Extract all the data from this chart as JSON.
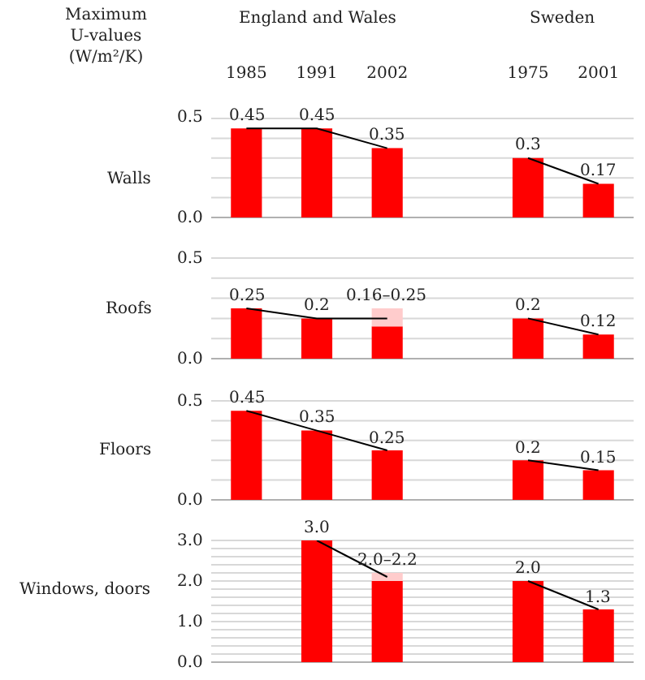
{
  "chart_data": [
    {
      "type": "bar",
      "stacked": true,
      "title": "Maximum U-values (W/m²/K)",
      "annotations": [
        "England and Wales",
        "Sweden"
      ],
      "ylabel": "Walls",
      "categories": [
        "1985",
        "1991",
        "2002",
        null,
        "1975",
        "2001"
      ],
      "ylim": [
        0,
        0.5
      ],
      "yticks": [
        {
          "value": 0,
          "label": "0.0"
        },
        {
          "value": 0.1,
          "label": null
        },
        {
          "value": 0.2,
          "label": null
        },
        {
          "value": 0.3,
          "label": null
        },
        {
          "value": 0.4,
          "label": null
        },
        {
          "value": 0.5,
          "label": "0.5"
        }
      ],
      "grid": "y",
      "series": [
        {
          "color": "#ff0000",
          "values": [
            0.45,
            0.45,
            0.35,
            null,
            0.3,
            0.17
          ],
          "value_labels": [
            "0.45",
            "0.45",
            "0.35",
            null,
            "0.3",
            "0.17"
          ]
        },
        {
          "type": "line",
          "color": "#000000",
          "values": [
            0.45,
            0.45,
            0.35,
            null,
            null,
            null
          ]
        },
        {
          "type": "line",
          "color": "#000000",
          "values": [
            null,
            null,
            null,
            null,
            0.3,
            0.17
          ]
        }
      ]
    },
    {
      "type": "bar",
      "stacked": true,
      "ylabel": "Roofs",
      "tick_labels": "y",
      "categories": [
        "1985",
        "1991",
        "2002",
        null,
        "1975",
        "2001"
      ],
      "ylim": [
        0,
        0.5
      ],
      "yticks": [
        {
          "value": 0,
          "label": "0.0"
        },
        {
          "value": 0.1,
          "label": null
        },
        {
          "value": 0.2,
          "label": null
        },
        {
          "value": 0.3,
          "label": null
        },
        {
          "value": 0.4,
          "label": null
        },
        {
          "value": 0.5,
          "label": "0.5"
        }
      ],
      "grid": "y",
      "series": [
        {
          "color": "#ff0000",
          "values": [
            0.25,
            0.2,
            0.16,
            null,
            0.2,
            0.12
          ],
          "value_labels": [
            "0.25",
            "0.2",
            null,
            null,
            "0.2",
            "0.12"
          ]
        },
        {
          "color": "#ffcccc",
          "values": [
            null,
            null,
            0.09,
            null,
            null,
            null
          ],
          "value_labels": [
            null,
            null,
            "0.16–0.25",
            null,
            null,
            null
          ]
        },
        {
          "type": "line",
          "color": "#000000",
          "values": [
            0.25,
            0.2,
            0.2,
            null,
            null,
            null
          ]
        },
        {
          "type": "line",
          "color": "#000000",
          "values": [
            null,
            null,
            null,
            null,
            0.2,
            0.12
          ]
        }
      ]
    },
    {
      "type": "bar",
      "stacked": true,
      "ylabel": "Floors",
      "tick_labels": "y",
      "categories": [
        "1985",
        "1991",
        "2002",
        null,
        "1975",
        "2001"
      ],
      "ylim": [
        0,
        0.5
      ],
      "yticks": [
        {
          "value": 0,
          "label": "0.0"
        },
        {
          "value": 0.1,
          "label": null
        },
        {
          "value": 0.2,
          "label": null
        },
        {
          "value": 0.3,
          "label": null
        },
        {
          "value": 0.4,
          "label": null
        },
        {
          "value": 0.5,
          "label": "0.5"
        }
      ],
      "grid": "y",
      "series": [
        {
          "color": "#ff0000",
          "values": [
            0.45,
            0.35,
            0.25,
            null,
            0.2,
            0.15
          ],
          "value_labels": [
            "0.45",
            "0.35",
            "0.25",
            null,
            "0.2",
            "0.15"
          ]
        },
        {
          "type": "line",
          "color": "#000000",
          "values": [
            0.45,
            0.35,
            0.25,
            null,
            null,
            null
          ]
        },
        {
          "type": "line",
          "color": "#000000",
          "values": [
            null,
            null,
            null,
            null,
            0.2,
            0.15
          ]
        }
      ]
    },
    {
      "type": "bar",
      "stacked": true,
      "ylabel": "Windows, doors",
      "tick_labels": "y",
      "categories": [
        "1985",
        "1991",
        "2002",
        null,
        "1975",
        "2001"
      ],
      "ylim": [
        0,
        3
      ],
      "yticks": [
        {
          "value": 0,
          "label": "0.0"
        },
        {
          "value": 0.2,
          "label": null
        },
        {
          "value": 0.4,
          "label": null
        },
        {
          "value": 0.6,
          "label": null
        },
        {
          "value": 0.8,
          "label": null
        },
        {
          "value": 1,
          "label": "1.0"
        },
        {
          "value": 1.2,
          "label": null
        },
        {
          "value": 1.4,
          "label": null
        },
        {
          "value": 1.6,
          "label": null
        },
        {
          "value": 1.8,
          "label": null
        },
        {
          "value": 2,
          "label": "2.0"
        },
        {
          "value": 2.2,
          "label": null
        },
        {
          "value": 2.4,
          "label": null
        },
        {
          "value": 2.6,
          "label": null
        },
        {
          "value": 2.8,
          "label": null
        },
        {
          "value": 3,
          "label": "3.0"
        }
      ],
      "grid": "y",
      "series": [
        {
          "color": "#ff0000",
          "values": [
            null,
            3.0,
            2.0,
            null,
            2.0,
            1.3
          ],
          "value_labels": [
            null,
            "3.0",
            null,
            null,
            "2.0",
            "1.3"
          ]
        },
        {
          "color": "#ffcccc",
          "values": [
            null,
            null,
            0.2,
            null,
            null,
            null
          ],
          "value_labels": [
            null,
            null,
            "2.0–2.2",
            null,
            null,
            null
          ]
        },
        {
          "type": "line",
          "color": "#000000",
          "values": [
            null,
            3.0,
            2.1,
            null,
            null,
            null
          ]
        },
        {
          "type": "line",
          "color": "#000000",
          "values": [
            null,
            null,
            null,
            null,
            2.0,
            1.3
          ]
        }
      ]
    }
  ]
}
